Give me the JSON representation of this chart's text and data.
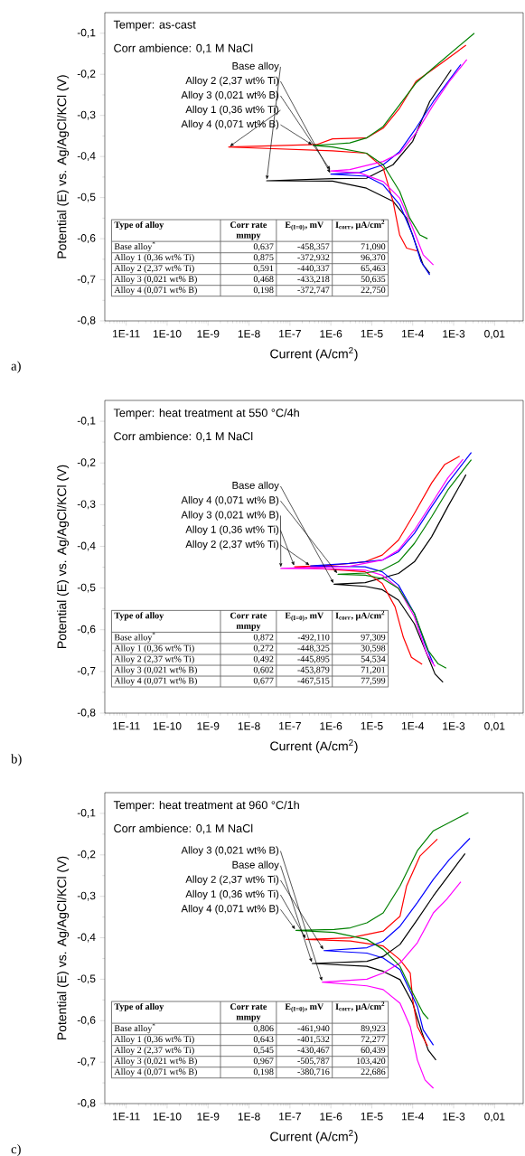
{
  "chart_data": [
    {
      "type": "line",
      "title": "Temper: as-cast",
      "subtitle": "Corr ambience: 0,1 M NaCl",
      "xlabel": "Current (A/cm$^{2}$)",
      "ylabel": "Potential (E) vs. Ag/AgCl/KCl (V)",
      "log": "x",
      "xlim": [
        3e-12,
        0.05
      ],
      "ylim": [
        -0.8,
        -0.05
      ],
      "xticks": [
        {
          "value": 1e-11,
          "label": "1E-11"
        },
        {
          "value": 1e-10,
          "label": "1E-10"
        },
        {
          "value": 1e-09,
          "label": "1E-9"
        },
        {
          "value": 1e-08,
          "label": "1E-8"
        },
        {
          "value": 1e-07,
          "label": "1E-7"
        },
        {
          "value": 1e-06,
          "label": "1E-6"
        },
        {
          "value": 1e-05,
          "label": "1E-5"
        },
        {
          "value": 0.0001,
          "label": "1E-4"
        },
        {
          "value": 0.001,
          "label": "1E-3"
        },
        {
          "value": 0.01,
          "label": "0,01"
        }
      ],
      "yticks": [
        {
          "value": -0.8,
          "label": "-0,8"
        },
        {
          "value": -0.7,
          "label": "-0,7"
        },
        {
          "value": -0.6,
          "label": "-0,6"
        },
        {
          "value": -0.5,
          "label": "-0,5"
        },
        {
          "value": -0.4,
          "label": "-0,4"
        },
        {
          "value": -0.3,
          "label": "-0,3"
        },
        {
          "value": -0.2,
          "label": "-0,2"
        },
        {
          "value": -0.1,
          "label": "-0,1"
        }
      ],
      "series": [
        {
          "name": "Base alloy",
          "color": "#000000",
          "x": [
            0.00026,
            0.00018,
            0.00012,
            7.1e-05,
            3.3e-05,
            7.4e-06,
            1.1e-06,
            2.7e-08,
            1.1e-06,
            7.4e-06,
            3.3e-05,
            0.0001,
            0.00026,
            0.00087
          ],
          "values": [
            -0.684,
            -0.664,
            -0.615,
            -0.55,
            -0.509,
            -0.477,
            -0.46,
            -0.459,
            -0.454,
            -0.453,
            -0.42,
            -0.363,
            -0.266,
            -0.189
          ]
        },
        {
          "name": "Alloy 1 (0,36 wt% Ti)",
          "color": "#ff0000",
          "x": [
            0.00013,
            7.1e-05,
            4.8e-05,
            3.3e-05,
            1.9e-05,
            7.4e-06,
            1.1e-06,
            3.2e-09,
            4.5e-07,
            1.1e-06,
            7.4e-06,
            1.9e-05,
            4.8e-05,
            0.00012,
            0.00046,
            0.002
          ],
          "values": [
            -0.63,
            -0.623,
            -0.591,
            -0.509,
            -0.428,
            -0.392,
            -0.386,
            -0.377,
            -0.371,
            -0.357,
            -0.355,
            -0.331,
            -0.282,
            -0.217,
            -0.176,
            -0.129
          ]
        },
        {
          "name": "Alloy 2 (2,37 wt% Ti)",
          "color": "#0000ff",
          "x": [
            0.00026,
            0.00016,
            0.0001,
            4.8e-05,
            1.9e-05,
            7.4e-06,
            1e-06,
            5.1e-06,
            1.9e-05,
            4.8e-05,
            0.00012,
            0.00032,
            0.0015
          ],
          "values": [
            -0.688,
            -0.656,
            -0.591,
            -0.517,
            -0.469,
            -0.448,
            -0.443,
            -0.439,
            -0.42,
            -0.388,
            -0.331,
            -0.266,
            -0.176
          ]
        },
        {
          "name": "Alloy 3 (0,021 wt% B)",
          "color": "#ff00ff",
          "x": [
            0.00032,
            0.00018,
            0.0001,
            4.8e-05,
            1.9e-05,
            5.1e-06,
            1e-06,
            2.9e-06,
            1.9e-05,
            4.8e-05,
            0.00012,
            0.00032,
            0.00079,
            0.0021
          ],
          "values": [
            -0.664,
            -0.639,
            -0.574,
            -0.501,
            -0.461,
            -0.44,
            -0.435,
            -0.432,
            -0.412,
            -0.392,
            -0.343,
            -0.274,
            -0.217,
            -0.164
          ]
        },
        {
          "name": "Alloy 4 (0,071 wt% B)",
          "color": "#008000",
          "x": [
            0.00023,
            0.00015,
            8.5e-05,
            4.8e-05,
            1.9e-05,
            7.4e-06,
            1.1e-06,
            3.7e-07,
            1.1e-06,
            2.9e-06,
            7.4e-06,
            1.9e-05,
            4.8e-05,
            0.00012,
            0.00032,
            0.0032
          ],
          "values": [
            -0.6,
            -0.591,
            -0.55,
            -0.485,
            -0.42,
            -0.392,
            -0.377,
            -0.373,
            -0.37,
            -0.367,
            -0.355,
            -0.327,
            -0.274,
            -0.221,
            -0.184,
            -0.1
          ]
        }
      ],
      "annotations": [
        "a)",
        "Type of alloy",
        "Corr rate mmpy",
        "E$_{(I=0)}$, mV",
        "I$_{corr}$, µA/cm$^{2}$",
        "Base alloy$^{*}$",
        "0,637",
        "-458,357",
        "71,090",
        "Alloy 1 (0,36 wt% Ti)",
        "0,875",
        "-372,932",
        "96,370",
        "Alloy 2 (2,37 wt% Ti)",
        "0,591",
        "-440,337",
        "65,463",
        "Alloy 3 (0,021 wt% B)",
        "0,468",
        "-433,218",
        "50,635",
        "Alloy 4 (0,071 wt% B)",
        "0,198",
        "-372,747",
        "22,750"
      ]
    },
    {
      "type": "line",
      "title": "Temper: heat treatment at 550 °C/4h",
      "subtitle": "Corr ambience: 0,1 M NaCl",
      "xlabel": "Current (A/cm$^{2}$)",
      "ylabel": "Potential (E) vs. Ag/AgCl/KCl (V)",
      "log": "x",
      "xlim": [
        3e-12,
        0.05
      ],
      "ylim": [
        -0.8,
        -0.05
      ],
      "xticks": [
        {
          "value": 1e-11,
          "label": "1E-11"
        },
        {
          "value": 1e-10,
          "label": "1E-10"
        },
        {
          "value": 1e-09,
          "label": "1E-9"
        },
        {
          "value": 1e-08,
          "label": "1E-8"
        },
        {
          "value": 1e-07,
          "label": "1E-7"
        },
        {
          "value": 1e-06,
          "label": "1E-6"
        },
        {
          "value": 1e-05,
          "label": "1E-5"
        },
        {
          "value": 0.0001,
          "label": "1E-4"
        },
        {
          "value": 0.001,
          "label": "1E-3"
        },
        {
          "value": 0.01,
          "label": "0,01"
        }
      ],
      "yticks": [
        {
          "value": -0.8,
          "label": "-0,8"
        },
        {
          "value": -0.7,
          "label": "-0,7"
        },
        {
          "value": -0.6,
          "label": "-0,6"
        },
        {
          "value": -0.5,
          "label": "-0,5"
        },
        {
          "value": -0.4,
          "label": "-0,4"
        },
        {
          "value": -0.3,
          "label": "-0,3"
        },
        {
          "value": -0.2,
          "label": "-0,2"
        },
        {
          "value": -0.1,
          "label": "-0,1"
        }
      ],
      "series": [
        {
          "name": "Base alloy",
          "color": "#000000",
          "x": [
            0.00055,
            0.00035,
            0.00024,
            0.00011,
            4.5e-05,
            1.8e-05,
            6.9e-06,
            1.2e-06,
            6.9e-06,
            4.5e-05,
            0.00011,
            0.00029,
            0.00072,
            0.002
          ],
          "values": [
            -0.726,
            -0.706,
            -0.666,
            -0.586,
            -0.529,
            -0.504,
            -0.496,
            -0.491,
            -0.487,
            -0.465,
            -0.437,
            -0.377,
            -0.305,
            -0.228
          ]
        },
        {
          "name": "Alloy 1 (0,36 wt% Ti)",
          "color": "#ff0000",
          "x": [
            0.00017,
            9.3e-05,
            5.9e-05,
            3.7e-05,
            1.8e-05,
            6.9e-06,
            1.3e-07,
            1.1e-06,
            6.9e-06,
            1.8e-05,
            4.5e-05,
            0.00011,
            0.00029,
            0.0006,
            0.0014
          ],
          "values": [
            -0.683,
            -0.666,
            -0.618,
            -0.545,
            -0.489,
            -0.461,
            -0.449,
            -0.445,
            -0.437,
            -0.421,
            -0.385,
            -0.321,
            -0.248,
            -0.204,
            -0.184
          ]
        },
        {
          "name": "Alloy 2 (2,37 wt% Ti)",
          "color": "#0000ff",
          "x": [
            0.00032,
            0.0002,
            0.00011,
            4.5e-05,
            1.8e-05,
            6.9e-06,
            3.2e-07,
            2.8e-06,
            1.8e-05,
            4.5e-05,
            0.00011,
            0.00029,
            0.00072,
            0.0027
          ],
          "values": [
            -0.682,
            -0.634,
            -0.561,
            -0.493,
            -0.461,
            -0.449,
            -0.447,
            -0.441,
            -0.433,
            -0.413,
            -0.369,
            -0.305,
            -0.248,
            -0.175
          ]
        },
        {
          "name": "Alloy 3 (0,021 wt% B)",
          "color": "#ff00ff",
          "x": [
            0.00035,
            0.00022,
            0.00011,
            4.5e-05,
            1.8e-05,
            6.9e-06,
            1.1e-06,
            6e-08,
            2.8e-06,
            1.8e-05,
            4.5e-05,
            0.00011,
            0.00029,
            0.00072,
            0.0017
          ],
          "values": [
            -0.688,
            -0.658,
            -0.569,
            -0.501,
            -0.469,
            -0.457,
            -0.454,
            -0.453,
            -0.448,
            -0.433,
            -0.409,
            -0.361,
            -0.297,
            -0.236,
            -0.191
          ]
        },
        {
          "name": "Alloy 4 (0,071 wt% B)",
          "color": "#008000",
          "x": [
            0.00066,
            0.00042,
            0.00024,
            0.00011,
            4.5e-05,
            1.8e-05,
            6.9e-06,
            1.5e-06,
            6.9e-06,
            1.8e-05,
            4.5e-05,
            0.00011,
            0.00029,
            0.00072,
            0.0027
          ],
          "values": [
            -0.692,
            -0.682,
            -0.65,
            -0.561,
            -0.501,
            -0.477,
            -0.469,
            -0.467,
            -0.464,
            -0.457,
            -0.437,
            -0.393,
            -0.329,
            -0.265,
            -0.192
          ]
        }
      ],
      "annotations": [
        "b)",
        "Type of alloy",
        "Corr rate mmpy",
        "E$_{(I=0)}$, mV",
        "I$_{corr}$, µA/cm$^{2}$",
        "Base alloy$^{*}$",
        "0,872",
        "-492,110",
        "97,309",
        "Alloy 1 (0,36 wt% Ti)",
        "0,272",
        "-448,325",
        "30,598",
        "Alloy 2 (2,37 wt% Ti)",
        "0,492",
        "-445,895",
        "54,534",
        "Alloy 3 (0,021 wt% B)",
        "0,602",
        "-453,879",
        "71,201",
        "Alloy 4 (0,071 wt% B)",
        "0,677",
        "-467,515",
        "77,599"
      ]
    },
    {
      "type": "line",
      "title": "Temper: heat treatment at 960 °C/1h",
      "subtitle": "Corr ambience: 0,1 M NaCl",
      "xlabel": "Current (A/cm$^{2}$)",
      "ylabel": "Potential (E) vs. Ag/AgCl/KCl (V)",
      "log": "x",
      "xlim": [
        3e-12,
        0.05
      ],
      "ylim": [
        -0.8,
        -0.05
      ],
      "xticks": [
        {
          "value": 1e-11,
          "label": "1E-11"
        },
        {
          "value": 1e-10,
          "label": "1E-10"
        },
        {
          "value": 1e-09,
          "label": "1E-9"
        },
        {
          "value": 1e-08,
          "label": "1E-8"
        },
        {
          "value": 1e-07,
          "label": "1E-7"
        },
        {
          "value": 1e-06,
          "label": "1E-6"
        },
        {
          "value": 1e-05,
          "label": "1E-5"
        },
        {
          "value": 0.0001,
          "label": "1E-4"
        },
        {
          "value": 0.001,
          "label": "1E-3"
        },
        {
          "value": 0.01,
          "label": "0,01"
        }
      ],
      "yticks": [
        {
          "value": -0.8,
          "label": "-0,8"
        },
        {
          "value": -0.7,
          "label": "-0,7"
        },
        {
          "value": -0.6,
          "label": "-0,6"
        },
        {
          "value": -0.5,
          "label": "-0,5"
        },
        {
          "value": -0.4,
          "label": "-0,4"
        },
        {
          "value": -0.3,
          "label": "-0,3"
        },
        {
          "value": -0.2,
          "label": "-0,2"
        },
        {
          "value": -0.1,
          "label": "-0,1"
        }
      ],
      "series": [
        {
          "name": "Base alloy",
          "color": "#000000",
          "x": [
            0.00037,
            0.00024,
            0.00017,
            0.0001,
            4.9e-05,
            1.9e-05,
            7.6e-06,
            3.5e-07,
            7.6e-06,
            1.9e-05,
            4.9e-05,
            0.00013,
            0.00032,
            0.00079,
            0.0019
          ],
          "values": [
            -0.695,
            -0.671,
            -0.63,
            -0.558,
            -0.501,
            -0.481,
            -0.469,
            -0.462,
            -0.457,
            -0.445,
            -0.416,
            -0.356,
            -0.299,
            -0.247,
            -0.197
          ]
        },
        {
          "name": "Alloy 1 (0,36 wt% Ti)",
          "color": "#ff0000",
          "x": [
            0.00023,
            0.00013,
            0.0001,
            8.7e-05,
            4.9e-05,
            1.9e-05,
            3e-06,
            2.5e-07,
            3e-06,
            1.9e-05,
            4.9e-05,
            7.1e-05,
            0.00015,
            0.0004
          ],
          "values": [
            -0.661,
            -0.614,
            -0.55,
            -0.485,
            -0.453,
            -0.42,
            -0.408,
            -0.404,
            -0.4,
            -0.384,
            -0.348,
            -0.275,
            -0.203,
            -0.162
          ]
        },
        {
          "name": "Alloy 2 (2,37 wt% Ti)",
          "color": "#0000ff",
          "x": [
            0.00032,
            0.00018,
            0.00013,
            4.9e-05,
            1.9e-05,
            7.6e-06,
            6.8e-07,
            7.6e-06,
            1.9e-05,
            4.9e-05,
            0.00013,
            0.00032,
            0.00079,
            0.0025
          ],
          "values": [
            -0.659,
            -0.622,
            -0.566,
            -0.477,
            -0.449,
            -0.437,
            -0.431,
            -0.424,
            -0.408,
            -0.372,
            -0.315,
            -0.259,
            -0.211,
            -0.16
          ]
        },
        {
          "name": "Alloy 3 (0,021 wt% B)",
          "color": "#ff00ff",
          "x": [
            0.00032,
            0.0002,
            0.00013,
            8.7e-05,
            4.9e-05,
            1.9e-05,
            7.6e-06,
            6.2e-07,
            7.6e-06,
            1.9e-05,
            4.9e-05,
            0.00013,
            0.00032,
            0.00068,
            0.0015
          ],
          "values": [
            -0.763,
            -0.743,
            -0.695,
            -0.614,
            -0.558,
            -0.525,
            -0.516,
            -0.507,
            -0.5,
            -0.485,
            -0.461,
            -0.412,
            -0.34,
            -0.307,
            -0.265
          ]
        },
        {
          "name": "Alloy 4 (0,071 wt% B)",
          "color": "#008000",
          "x": [
            0.00024,
            0.00018,
            0.0001,
            4.9e-05,
            1.9e-05,
            7.6e-06,
            1.2e-06,
            1.4e-07,
            1.2e-06,
            3e-06,
            7.6e-06,
            1.9e-05,
            4.9e-05,
            0.00013,
            0.00032,
            0.0023
          ],
          "values": [
            -0.596,
            -0.582,
            -0.533,
            -0.469,
            -0.428,
            -0.404,
            -0.387,
            -0.382,
            -0.38,
            -0.376,
            -0.364,
            -0.34,
            -0.275,
            -0.19,
            -0.142,
            -0.098
          ]
        }
      ],
      "annotations": [
        "c)",
        "Type of alloy",
        "Corr rate mmpy",
        "E$_{(I=0)}$, mV",
        "I$_{corr}$, µA/cm$^{2}$",
        "Base alloy$^{*}$",
        "0,806",
        "-461,940",
        "89,923",
        "Alloy 1 (0,36 wt% Ti)",
        "0,643",
        "-401,532",
        "72,277",
        "Alloy 2 (2,37 wt% Ti)",
        "0,545",
        "-430,467",
        "60,439",
        "Alloy 3 (0,021 wt% B)",
        "0,967",
        "-505,787",
        "103,420",
        "Alloy 4 (0,071 wt% B)",
        "0,198",
        "-380,716",
        "22,686"
      ]
    }
  ]
}
